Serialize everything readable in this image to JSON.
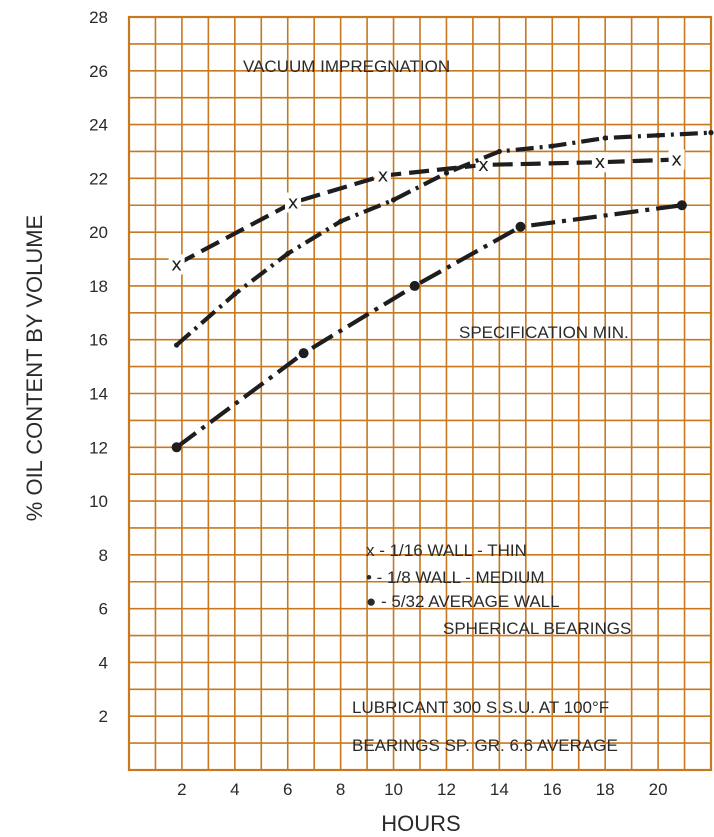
{
  "chart_data": {
    "type": "line",
    "xlabel": "HOURS",
    "ylabel": "% OIL CONTENT BY VOLUME",
    "xlim": [
      0,
      22
    ],
    "ylim": [
      0,
      28
    ],
    "xticks": [
      2,
      4,
      6,
      8,
      10,
      12,
      14,
      16,
      18,
      20
    ],
    "yticks": [
      2,
      4,
      6,
      8,
      10,
      12,
      14,
      16,
      18,
      20,
      22,
      24,
      26,
      28
    ],
    "grid": true,
    "grid_step": 1,
    "series": [
      {
        "name": "x - 1/16 WALL - THIN",
        "marker": "x",
        "dash": "long-dash",
        "x": [
          1.8,
          6.2,
          9.6,
          13.4,
          17.8,
          20.7
        ],
        "y": [
          18.8,
          21.1,
          22.1,
          22.5,
          22.6,
          22.7
        ]
      },
      {
        "name": "• - 1/8 WALL - MEDIUM",
        "marker": "small-dot",
        "dash": "dash-dot",
        "x": [
          1.8,
          4.0,
          6.0,
          8.0,
          10.0,
          12.0,
          14.0,
          16.0,
          18.0,
          20.0,
          22.0
        ],
        "y": [
          15.8,
          17.7,
          19.2,
          20.4,
          21.2,
          22.2,
          23.0,
          23.2,
          23.5,
          23.6,
          23.7
        ]
      },
      {
        "name": "● - 5/32 AVERAGE WALL",
        "marker": "big-dot",
        "dash": "long-dash-dot",
        "x": [
          1.8,
          6.6,
          10.8,
          14.8,
          20.9
        ],
        "y": [
          12.0,
          15.5,
          18.0,
          20.2,
          21.0
        ]
      }
    ],
    "annotations": {
      "top": "VACUUM IMPREGNATION",
      "spec": "SPECIFICATION MIN.",
      "legend_1": "x - 1/16 WALL - THIN",
      "legend_2": "• - 1/8 WALL - MEDIUM",
      "legend_3": "● - 5/32 AVERAGE WALL",
      "legend_4": "SPHERICAL BEARINGS",
      "note_1": "LUBRICANT 300 S.S.U. AT 100°F",
      "note_2": "BEARINGS SP. GR. 6.6 AVERAGE"
    },
    "colors": {
      "grid": "#c8781e",
      "line": "#1e1e1e",
      "text": "#2a2a2a",
      "background": "#ffffff"
    }
  }
}
